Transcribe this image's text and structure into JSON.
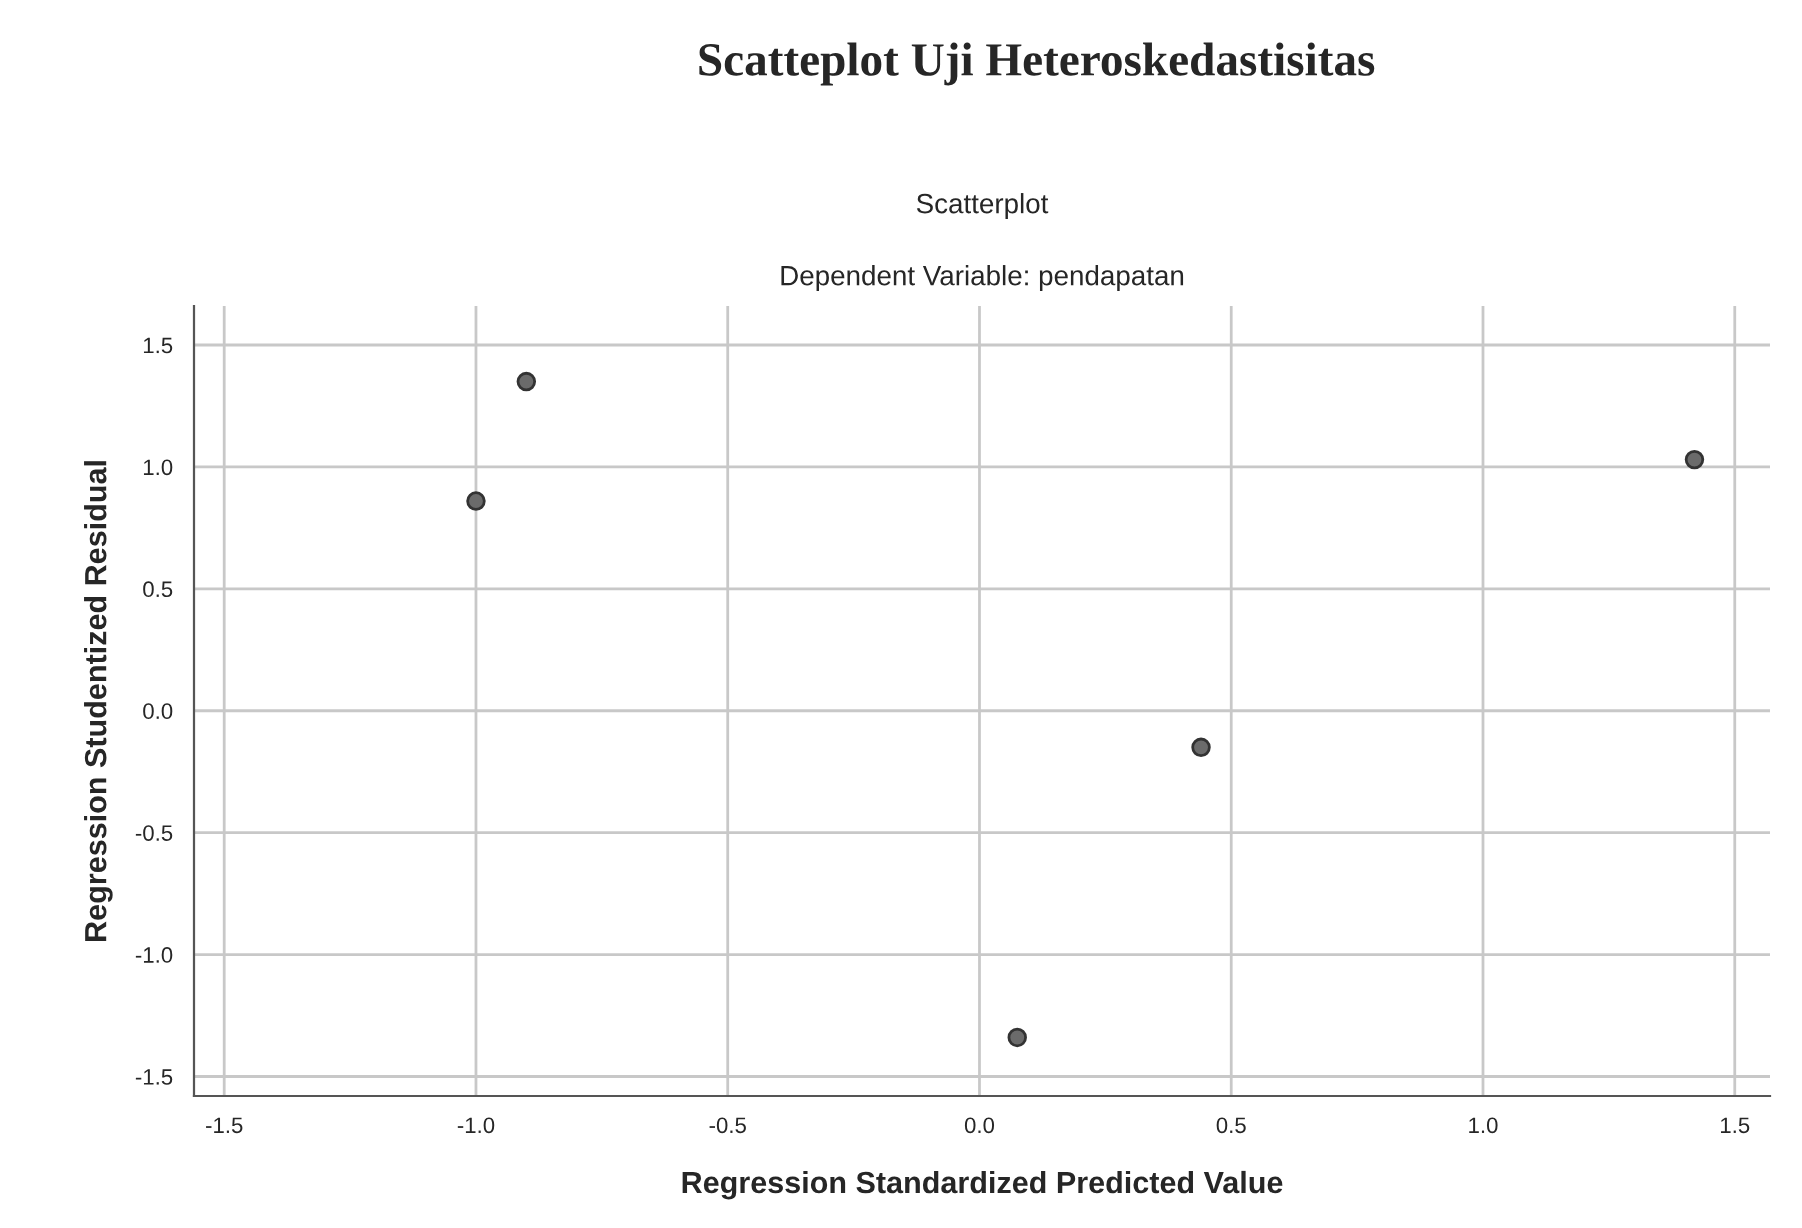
{
  "chart_data": {
    "type": "scatter",
    "title": "Scatteplot Uji Heteroskedastisitas",
    "subtitle": "Scatterplot",
    "annotations": [
      "Dependent Variable: pendapatan"
    ],
    "xlabel": "Regression Standardized Predicted Value",
    "ylabel": "Regression Studentized Residual",
    "x": [
      -1.0,
      -0.9,
      0.075,
      0.44,
      1.42
    ],
    "series": [
      {
        "color": "#6b6b6b",
        "values": [
          0.86,
          1.35,
          -1.34,
          -0.15,
          1.03
        ]
      }
    ],
    "xlim": [
      -1.56,
      1.57
    ],
    "ylim": [
      -1.58,
      1.66
    ],
    "xticks": [
      {
        "value": -1.5,
        "label": "-1.5"
      },
      {
        "value": -1.0,
        "label": "-1.0"
      },
      {
        "value": -0.5,
        "label": "-0.5"
      },
      {
        "value": 0.0,
        "label": "0.0"
      },
      {
        "value": 0.5,
        "label": "0.5"
      },
      {
        "value": 1.0,
        "label": "1.0"
      },
      {
        "value": 1.5,
        "label": "1.5"
      }
    ],
    "yticks": [
      {
        "value": -1.5,
        "label": "-1.5"
      },
      {
        "value": -1.0,
        "label": "-1.0"
      },
      {
        "value": -0.5,
        "label": "-0.5"
      },
      {
        "value": 0.0,
        "label": "0.0"
      },
      {
        "value": 0.5,
        "label": "0.5"
      },
      {
        "value": 1.0,
        "label": "1.0"
      },
      {
        "value": 1.5,
        "label": "1.5"
      }
    ],
    "grid": true,
    "marker": "circle",
    "legend": false
  }
}
